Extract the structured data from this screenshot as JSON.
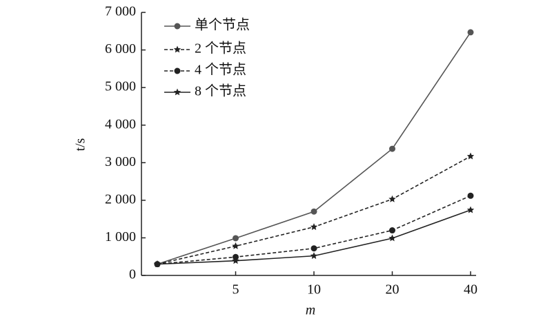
{
  "chart_data": {
    "type": "line",
    "xlabel": "m",
    "ylabel": "t/s",
    "categories": [
      null,
      "5",
      "10",
      "20",
      "40"
    ],
    "ylim": [
      0,
      7000
    ],
    "yticks": [
      0,
      {
        "value": 1000,
        "label": "1 000"
      },
      {
        "value": 2000,
        "label": "2 000"
      },
      {
        "value": 3000,
        "label": "3 000"
      },
      {
        "value": 4000,
        "label": "4 000"
      },
      {
        "value": 5000,
        "label": "5 000"
      },
      {
        "value": 6000,
        "label": "6 000"
      },
      {
        "value": 7000,
        "label": "7 000"
      }
    ],
    "legend": "upper left",
    "series": [
      {
        "name": "单个节点",
        "color": "#555555",
        "dash": "solid",
        "marker": "circle",
        "values": [
          300,
          990,
          1700,
          3370,
          6470
        ]
      },
      {
        "name": "2 个节点",
        "color": "#222222",
        "dash": "dashed",
        "marker": "star",
        "values": [
          300,
          780,
          1290,
          2030,
          3170
        ]
      },
      {
        "name": "4 个节点",
        "color": "#222222",
        "dash": "dashed",
        "marker": "circle",
        "values": [
          300,
          490,
          720,
          1200,
          2120
        ]
      },
      {
        "name": "8 个节点",
        "color": "#222222",
        "dash": "solid",
        "marker": "star",
        "values": [
          300,
          390,
          520,
          990,
          1740
        ]
      }
    ]
  }
}
